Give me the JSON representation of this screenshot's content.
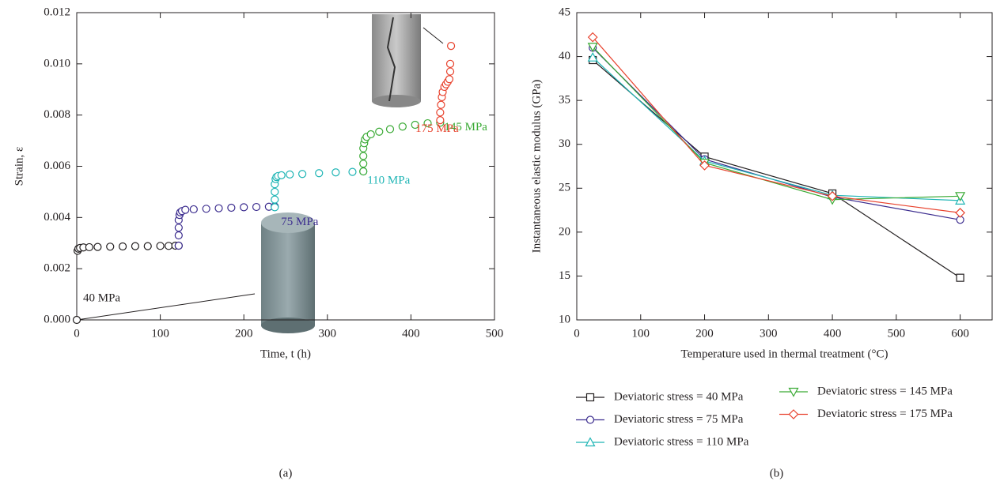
{
  "chart_data": [
    {
      "type": "scatter",
      "caption": "(a)",
      "x_label": "Time, t (h)",
      "y_label": "Strain, ε",
      "xlim": [
        0,
        500
      ],
      "xticks": [
        0,
        100,
        200,
        300,
        400,
        500
      ],
      "ylim": [
        0,
        0.012
      ],
      "yticks": [
        {
          "value": 0,
          "label": "0.000"
        },
        {
          "value": 0.002,
          "label": "0.002"
        },
        {
          "value": 0.004,
          "label": "0.004"
        },
        {
          "value": 0.006,
          "label": "0.006"
        },
        {
          "value": 0.008,
          "label": "0.008"
        },
        {
          "value": 0.01,
          "label": "0.010"
        },
        {
          "value": 0.012,
          "label": "0.012"
        }
      ],
      "series": [
        {
          "name": "40 MPa",
          "color": "#231f20",
          "x": [
            0,
            1,
            2,
            4,
            8,
            15,
            25,
            40,
            55,
            70,
            85,
            100,
            110,
            118,
            122
          ],
          "values": [
            0,
            0.0027,
            0.00278,
            0.00281,
            0.00283,
            0.00284,
            0.00285,
            0.00286,
            0.00287,
            0.00288,
            0.00288,
            0.00289,
            0.00289,
            0.0029,
            0.0029
          ]
        },
        {
          "name": "75 MPa",
          "color": "#3c2d8f",
          "x": [
            122,
            122,
            122,
            122,
            123,
            124,
            126,
            130,
            140,
            155,
            170,
            185,
            200,
            215,
            230,
            237
          ],
          "values": [
            0.0029,
            0.0033,
            0.0036,
            0.0039,
            0.0041,
            0.0042,
            0.00425,
            0.0043,
            0.00432,
            0.00434,
            0.00436,
            0.00438,
            0.0044,
            0.00441,
            0.00442,
            0.00443
          ]
        },
        {
          "name": "110 MPa",
          "color": "#1fb5b5",
          "x": [
            237,
            237,
            237,
            237,
            238,
            239,
            241,
            245,
            255,
            270,
            290,
            310,
            330,
            343
          ],
          "values": [
            0.0044,
            0.0047,
            0.005,
            0.0053,
            0.0055,
            0.00558,
            0.00562,
            0.00565,
            0.00568,
            0.0057,
            0.00573,
            0.00576,
            0.00578,
            0.0058
          ]
        },
        {
          "name": "145 MPa",
          "color": "#3aaa35",
          "x": [
            343,
            343,
            343,
            343,
            344,
            345,
            347,
            352,
            362,
            375,
            390,
            405,
            420,
            435
          ],
          "values": [
            0.0058,
            0.0061,
            0.0064,
            0.0067,
            0.0069,
            0.00705,
            0.00715,
            0.00725,
            0.00735,
            0.00745,
            0.00755,
            0.00762,
            0.00768,
            0.0077
          ]
        },
        {
          "name": "175 MPa",
          "color": "#e8412c",
          "x": [
            435,
            435,
            436,
            437,
            438,
            440,
            442,
            444,
            446,
            447,
            447,
            448
          ],
          "values": [
            0.0078,
            0.0081,
            0.0084,
            0.0087,
            0.0089,
            0.0091,
            0.0092,
            0.0093,
            0.0094,
            0.0097,
            0.01,
            0.0107
          ]
        }
      ]
    },
    {
      "type": "line",
      "caption": "(b)",
      "x_label": "Temperature used in thermal treatment (°C)",
      "y_label": "Instantaneous elastic modulus (GPa)",
      "xlim": [
        0,
        650
      ],
      "xticks": [
        0,
        100,
        200,
        300,
        400,
        500,
        600
      ],
      "ylim": [
        10,
        45
      ],
      "yticks": [
        10,
        15,
        20,
        25,
        30,
        35,
        40,
        45
      ],
      "x": [
        25,
        200,
        400,
        600
      ],
      "series": [
        {
          "name": "Deviatoric stress = 40 MPa",
          "color": "#231f20",
          "marker": "square",
          "values": [
            39.6,
            28.6,
            24.4,
            14.8
          ]
        },
        {
          "name": "Deviatoric stress = 75 MPa",
          "color": "#3c2d8f",
          "marker": "circle",
          "values": [
            41.0,
            28.3,
            24.0,
            21.4
          ]
        },
        {
          "name": "Deviatoric stress = 110 MPa",
          "color": "#1fb5b5",
          "marker": "triangle-up",
          "values": [
            39.9,
            28.1,
            24.2,
            23.6
          ]
        },
        {
          "name": "Deviatoric stress = 145 MPa",
          "color": "#3aaa35",
          "marker": "triangle-down",
          "values": [
            41.1,
            27.9,
            23.7,
            24.1
          ]
        },
        {
          "name": "Deviatoric stress = 175 MPa",
          "color": "#e8412c",
          "marker": "diamond",
          "values": [
            42.2,
            27.6,
            24.1,
            22.2
          ]
        }
      ]
    }
  ]
}
